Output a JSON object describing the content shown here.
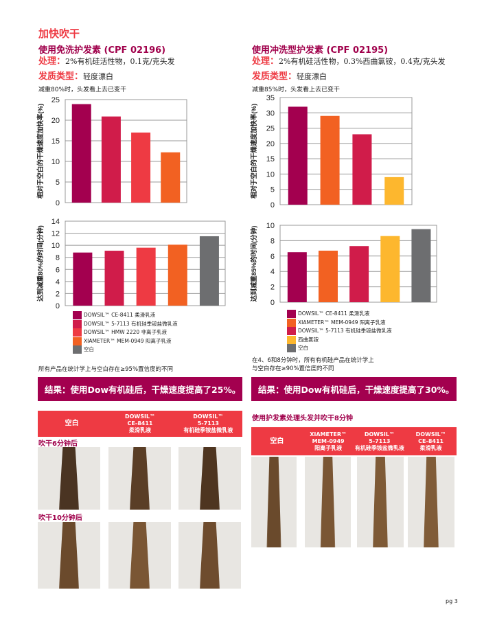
{
  "section_title": "加快吹干",
  "left": {
    "title": "使用免洗护发素 (CPF 02196)",
    "treatment_label": "处理：",
    "treatment": "2%有机硅活性物，0.1克/克头发",
    "hair_label": "发质类型：",
    "hair": "轻度漂白",
    "note": "减重80%时，头发看上去已变干",
    "legend": [
      {
        "name": "DOWSIL™ CE-8411 柔滑乳液",
        "color": "#a3004f"
      },
      {
        "name": "DOWSIL™ 5-7113 有机硅季铵盐微乳液",
        "color": "#d01c4a"
      },
      {
        "name": "DOWSIL™ HMW 2220 非离子乳液",
        "color": "#ee3a43"
      },
      {
        "name": "XIAMETER™ MEM-0949 阳离子乳液",
        "color": "#f26122"
      },
      {
        "name": "空白",
        "color": "#6d6e70"
      }
    ],
    "footnote": "所有产品在统计学上与空白存在≥95%置信度的不同",
    "result": "结果：使用Dow有机硅后，干燥速度提高了25%。",
    "table_headers": [
      "空白",
      "DOWSIL™\nCE-8411\n柔滑乳液",
      "DOWSIL™\n5-7113\n有机硅季铵盐微乳液"
    ],
    "row_labels": [
      "吹干6分钟后",
      "吹干10分钟后"
    ]
  },
  "right": {
    "title": "使用冲洗型护发素 (CPF 02195)",
    "treatment_label": "处理：",
    "treatment": "2%有机硅活性物，0.3%西曲氯铵，0.4克/克头发",
    "hair_label": "发质类型：",
    "hair": "轻度漂白",
    "note": "减重85%时，头发看上去已变干",
    "legend": [
      {
        "name": "DOWSIL™ CE-8411 柔滑乳液",
        "color": "#a3004f"
      },
      {
        "name": "XIAMETER™ MEM-0949 阳离子乳液",
        "color": "#f26122"
      },
      {
        "name": "DOWSIL™ 5-7113 有机硅季铵盐微乳液",
        "color": "#d01c4a"
      },
      {
        "name": "西曲氯铵",
        "color": "#fdb72e"
      },
      {
        "name": "空白",
        "color": "#6d6e70"
      }
    ],
    "footnote": "在4、6和8分钟时，所有有机硅产品在统计学上\n与空白存在≥90%置信度的不同",
    "result": "结果：使用Dow有机硅后，干燥速度提高了30%。",
    "photo_title": "使用护发素处理头发并吹干8分钟",
    "table_headers": [
      "空白",
      "XIAMETER™\nMEM-0949\n阳离子乳液",
      "DOWSIL™\n5-7113\n有机硅季铵盐微乳液",
      "DOWSIL™\nCE-8411\n柔滑乳液"
    ]
  },
  "page_number": "pg 3",
  "chart_data": [
    {
      "type": "bar",
      "ylabel": "相对于空白的干燥速度加快率(%)",
      "ylim": [
        0,
        25
      ],
      "yticks": [
        0,
        5,
        10,
        15,
        20,
        25
      ],
      "values": [
        23.9,
        20.9,
        17.0,
        12.2
      ],
      "colors": [
        "#a3004f",
        "#d01c4a",
        "#ee3a43",
        "#f26122"
      ],
      "grid": true
    },
    {
      "type": "bar",
      "ylabel": "达到减重80%的时间(分钟)",
      "ylim": [
        0,
        14
      ],
      "yticks": [
        0,
        2,
        4,
        6,
        8,
        10,
        12,
        14
      ],
      "values": [
        8.8,
        9.1,
        9.6,
        10.1,
        11.5
      ],
      "colors": [
        "#a3004f",
        "#d01c4a",
        "#ee3a43",
        "#f26122",
        "#6d6e70"
      ],
      "grid": true
    },
    {
      "type": "bar",
      "ylabel": "相对于空白的干燥速度加快率(%)",
      "ylim": [
        0,
        35
      ],
      "yticks": [
        0,
        5,
        10,
        15,
        20,
        25,
        30,
        35
      ],
      "values": [
        32,
        29,
        23,
        9
      ],
      "colors": [
        "#a3004f",
        "#f26122",
        "#d01c4a",
        "#fdb72e"
      ],
      "grid": true
    },
    {
      "type": "bar",
      "ylabel": "达到减重85%的时间(分钟)",
      "ylim": [
        0,
        10
      ],
      "yticks": [
        0,
        2,
        4,
        6,
        8,
        10
      ],
      "values": [
        6.5,
        6.7,
        7.3,
        8.6,
        9.5
      ],
      "colors": [
        "#a3004f",
        "#f26122",
        "#d01c4a",
        "#fdb72e",
        "#6d6e70"
      ],
      "grid": true
    }
  ]
}
